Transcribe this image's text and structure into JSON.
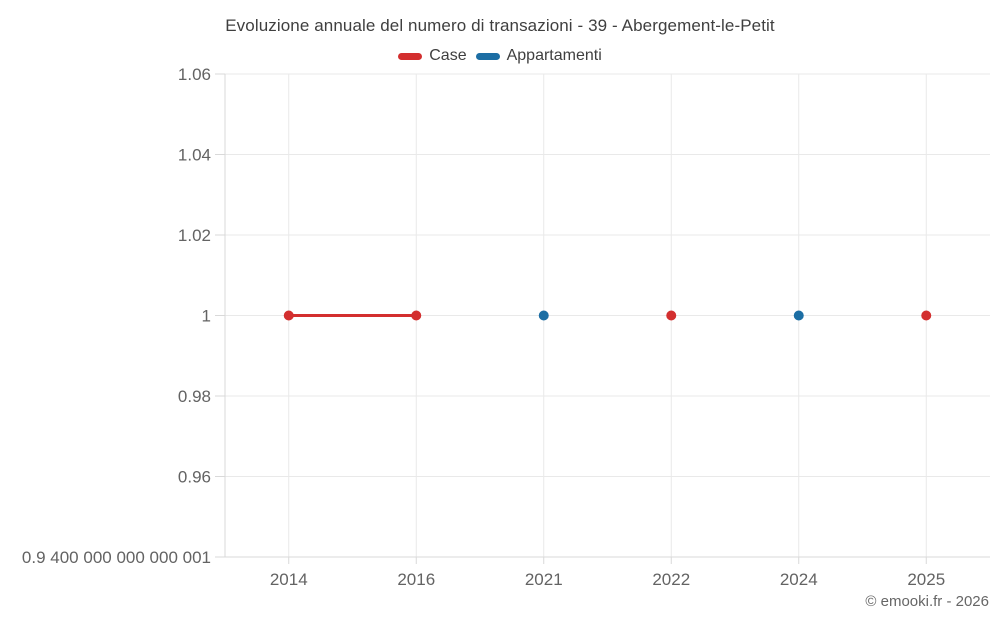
{
  "chart_data": {
    "type": "line",
    "title": "Evoluzione annuale del numero di transazioni - 39 - Abergement-le-Petit",
    "categories": [
      "2014",
      "2016",
      "2021",
      "2022",
      "2024",
      "2025"
    ],
    "series": [
      {
        "name": "Case",
        "color": "#d32f2f",
        "values": [
          1,
          1,
          null,
          1,
          null,
          1
        ]
      },
      {
        "name": "Appartamenti",
        "color": "#1c6ea4",
        "values": [
          null,
          null,
          1,
          null,
          1,
          null
        ]
      }
    ],
    "ylim": [
      0.94,
      1.06
    ],
    "yticks": [
      {
        "value": 1.06,
        "label": "1.06"
      },
      {
        "value": 1.04,
        "label": "1.04"
      },
      {
        "value": 1.02,
        "label": "1.02"
      },
      {
        "value": 1.0,
        "label": "1"
      },
      {
        "value": 0.98,
        "label": "0.98"
      },
      {
        "value": 0.96,
        "label": "0.96"
      },
      {
        "value": 0.94,
        "label": "0.9 400 000 000 000 001"
      }
    ],
    "legend_position": "top",
    "grid": true,
    "xlabel": "",
    "ylabel": ""
  },
  "footer": {
    "copyright": "© emooki.fr - 2026"
  }
}
